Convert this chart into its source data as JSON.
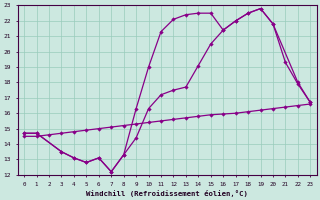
{
  "xlabel": "Windchill (Refroidissement éolien,°C)",
  "bg_color": "#cce8e0",
  "line_color": "#880088",
  "grid_color": "#99ccbb",
  "xmin": 0,
  "xmax": 23,
  "ymin": 12,
  "ymax": 23,
  "line1_x": [
    0,
    1,
    3,
    4,
    5,
    6,
    7,
    8,
    9,
    10,
    11,
    12,
    13,
    14,
    15,
    16,
    17,
    18,
    19,
    20,
    21,
    22,
    23
  ],
  "line1_y": [
    14.7,
    14.7,
    13.5,
    13.1,
    12.8,
    13.1,
    12.2,
    13.3,
    14.4,
    16.3,
    17.2,
    17.5,
    17.7,
    19.1,
    20.5,
    21.4,
    22.0,
    22.5,
    22.8,
    21.8,
    19.3,
    17.9,
    16.7
  ],
  "line2_x": [
    0,
    1,
    3,
    4,
    5,
    6,
    7,
    8,
    9,
    10,
    11,
    12,
    13,
    14,
    15,
    16,
    17,
    18,
    19,
    20,
    22,
    23
  ],
  "line2_y": [
    14.7,
    14.7,
    13.5,
    13.1,
    12.8,
    13.1,
    12.2,
    13.3,
    16.3,
    19.0,
    21.3,
    22.1,
    22.4,
    22.5,
    22.5,
    21.4,
    22.0,
    22.5,
    22.8,
    21.8,
    18.0,
    16.7
  ],
  "line3_x": [
    0,
    1,
    2,
    3,
    4,
    5,
    6,
    7,
    8,
    9,
    10,
    11,
    12,
    13,
    14,
    15,
    16,
    17,
    18,
    19,
    20,
    21,
    22,
    23
  ],
  "line3_y": [
    14.5,
    14.5,
    14.6,
    14.7,
    14.8,
    14.9,
    15.0,
    15.1,
    15.2,
    15.3,
    15.4,
    15.5,
    15.6,
    15.7,
    15.8,
    15.9,
    15.95,
    16.0,
    16.1,
    16.2,
    16.3,
    16.4,
    16.5,
    16.6
  ]
}
